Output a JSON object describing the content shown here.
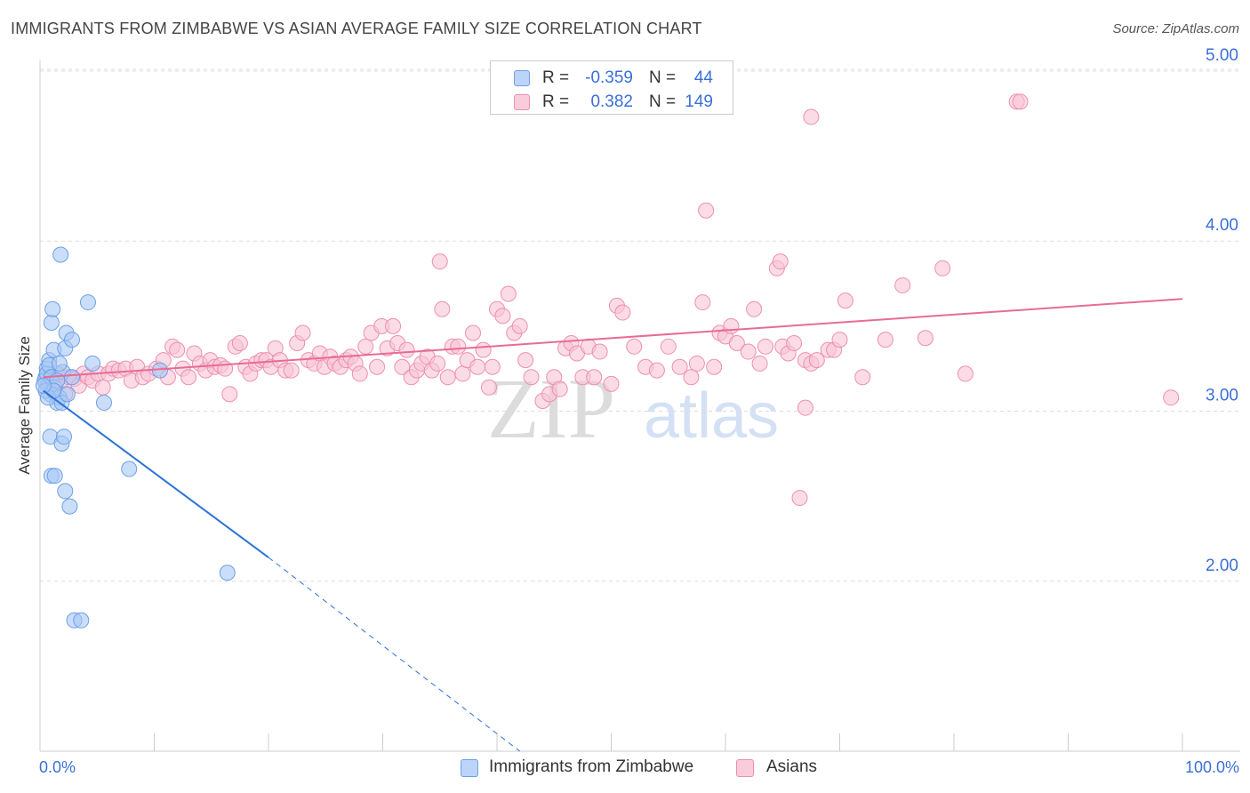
{
  "title": "IMMIGRANTS FROM ZIMBABWE VS ASIAN AVERAGE FAMILY SIZE CORRELATION CHART",
  "source": "Source: ZipAtlas.com",
  "watermark": {
    "zip": "ZIP",
    "atlas": "atlas"
  },
  "legend": {
    "rows": [
      {
        "r_label": "R =",
        "r_value": "-0.359",
        "n_label": "N =",
        "n_value": "44",
        "color": "#7aaaf0"
      },
      {
        "r_label": "R =",
        "r_value": "0.382",
        "n_label": "N =",
        "n_value": "149",
        "color": "#f3a0bd"
      }
    ]
  },
  "bottom_legend": {
    "series1": "Immigrants from Zimbabwe",
    "series2": "Asians"
  },
  "colors": {
    "blue_fill": "#a9c8f5",
    "blue_stroke": "#6c9fe6",
    "blue_line": "#2b72d6",
    "pink_fill": "#f8c5d6",
    "pink_stroke": "#ee8fb0",
    "pink_line": "#e86b96",
    "axis_text": "#3a6fd8",
    "grid": "#dddddd"
  },
  "chart_data": {
    "type": "scatter",
    "title": "IMMIGRANTS FROM ZIMBABWE VS ASIAN AVERAGE FAMILY SIZE CORRELATION CHART",
    "xlabel": "",
    "ylabel": "Average Family Size",
    "x_range": [
      0,
      100
    ],
    "y_range": [
      1.0,
      5.1
    ],
    "x_tick_labels": [
      "0.0%",
      "100.0%"
    ],
    "y_ticks": [
      2.0,
      3.0,
      4.0,
      5.0
    ],
    "y_tick_labels": [
      "2.00",
      "3.00",
      "4.00",
      "5.00"
    ],
    "grid": "horizontal dashed",
    "series": [
      {
        "name": "Immigrants from Zimbabwe",
        "r": -0.359,
        "n": 44,
        "trend": {
          "x": [
            0.3,
            20.0
          ],
          "y": [
            3.12,
            2.14
          ],
          "extended_to": [
            42.0,
            1.0
          ]
        },
        "points": [
          [
            0.5,
            3.2
          ],
          [
            0.6,
            3.25
          ],
          [
            0.7,
            3.15
          ],
          [
            0.8,
            3.3
          ],
          [
            0.9,
            3.1
          ],
          [
            1.0,
            3.52
          ],
          [
            1.1,
            3.6
          ],
          [
            1.2,
            3.36
          ],
          [
            0.4,
            3.18
          ],
          [
            0.5,
            3.12
          ],
          [
            0.6,
            3.22
          ],
          [
            0.8,
            3.27
          ],
          [
            1.0,
            3.2
          ],
          [
            1.3,
            3.14
          ],
          [
            1.5,
            3.05
          ],
          [
            1.7,
            3.08
          ],
          [
            1.9,
            3.05
          ],
          [
            2.0,
            3.23
          ],
          [
            2.2,
            3.37
          ],
          [
            2.3,
            3.46
          ],
          [
            1.7,
            3.28
          ],
          [
            0.9,
            2.85
          ],
          [
            1.9,
            2.81
          ],
          [
            2.1,
            2.85
          ],
          [
            1.0,
            2.62
          ],
          [
            1.3,
            2.62
          ],
          [
            2.2,
            2.53
          ],
          [
            2.6,
            2.44
          ],
          [
            2.4,
            3.1
          ],
          [
            2.8,
            3.42
          ],
          [
            1.8,
            3.92
          ],
          [
            4.2,
            3.64
          ],
          [
            4.6,
            3.28
          ],
          [
            5.6,
            3.05
          ],
          [
            7.8,
            2.66
          ],
          [
            10.5,
            3.24
          ],
          [
            16.4,
            2.05
          ],
          [
            3.0,
            1.77
          ],
          [
            3.6,
            1.77
          ],
          [
            1.5,
            3.18
          ],
          [
            0.7,
            3.08
          ],
          [
            1.2,
            3.12
          ],
          [
            0.3,
            3.15
          ],
          [
            2.8,
            3.2
          ]
        ]
      },
      {
        "name": "Asians",
        "r": 0.382,
        "n": 149,
        "trend": {
          "x": [
            0.3,
            100.0
          ],
          "y": [
            3.2,
            3.66
          ]
        },
        "points": [
          [
            0.5,
            3.18
          ],
          [
            0.8,
            3.2
          ],
          [
            1.2,
            3.15
          ],
          [
            1.5,
            3.22
          ],
          [
            1.8,
            3.17
          ],
          [
            2.2,
            3.1
          ],
          [
            2.5,
            3.2
          ],
          [
            3.0,
            3.19
          ],
          [
            3.4,
            3.15
          ],
          [
            3.8,
            3.22
          ],
          [
            4.2,
            3.2
          ],
          [
            4.6,
            3.18
          ],
          [
            5.1,
            3.22
          ],
          [
            5.5,
            3.14
          ],
          [
            6.0,
            3.22
          ],
          [
            6.4,
            3.25
          ],
          [
            6.9,
            3.24
          ],
          [
            7.5,
            3.25
          ],
          [
            8.0,
            3.18
          ],
          [
            8.5,
            3.26
          ],
          [
            9.0,
            3.2
          ],
          [
            9.5,
            3.22
          ],
          [
            10.2,
            3.25
          ],
          [
            10.8,
            3.3
          ],
          [
            11.2,
            3.2
          ],
          [
            11.6,
            3.38
          ],
          [
            12.0,
            3.36
          ],
          [
            12.5,
            3.25
          ],
          [
            13.0,
            3.2
          ],
          [
            13.5,
            3.34
          ],
          [
            14.0,
            3.28
          ],
          [
            14.5,
            3.24
          ],
          [
            14.9,
            3.3
          ],
          [
            15.3,
            3.26
          ],
          [
            15.8,
            3.27
          ],
          [
            16.2,
            3.25
          ],
          [
            16.6,
            3.1
          ],
          [
            17.1,
            3.38
          ],
          [
            17.5,
            3.4
          ],
          [
            18.0,
            3.26
          ],
          [
            18.4,
            3.22
          ],
          [
            18.9,
            3.28
          ],
          [
            19.4,
            3.3
          ],
          [
            19.8,
            3.3
          ],
          [
            20.2,
            3.26
          ],
          [
            20.6,
            3.37
          ],
          [
            21.0,
            3.3
          ],
          [
            21.5,
            3.24
          ],
          [
            22.0,
            3.24
          ],
          [
            22.5,
            3.4
          ],
          [
            23.0,
            3.46
          ],
          [
            23.5,
            3.3
          ],
          [
            24.0,
            3.28
          ],
          [
            24.5,
            3.34
          ],
          [
            24.9,
            3.26
          ],
          [
            25.4,
            3.32
          ],
          [
            25.8,
            3.28
          ],
          [
            26.3,
            3.26
          ],
          [
            26.8,
            3.3
          ],
          [
            27.2,
            3.32
          ],
          [
            27.6,
            3.28
          ],
          [
            28.0,
            3.22
          ],
          [
            28.5,
            3.38
          ],
          [
            29.0,
            3.46
          ],
          [
            29.5,
            3.26
          ],
          [
            29.9,
            3.5
          ],
          [
            30.4,
            3.37
          ],
          [
            30.9,
            3.5
          ],
          [
            31.3,
            3.4
          ],
          [
            31.7,
            3.26
          ],
          [
            32.1,
            3.36
          ],
          [
            32.5,
            3.2
          ],
          [
            33.0,
            3.24
          ],
          [
            33.4,
            3.28
          ],
          [
            33.9,
            3.32
          ],
          [
            34.3,
            3.24
          ],
          [
            34.8,
            3.28
          ],
          [
            35.2,
            3.6
          ],
          [
            35.7,
            3.2
          ],
          [
            36.1,
            3.38
          ],
          [
            36.6,
            3.38
          ],
          [
            37.0,
            3.22
          ],
          [
            37.4,
            3.3
          ],
          [
            37.9,
            3.46
          ],
          [
            38.3,
            3.26
          ],
          [
            38.8,
            3.36
          ],
          [
            39.3,
            3.14
          ],
          [
            39.6,
            3.26
          ],
          [
            40.0,
            3.6
          ],
          [
            40.5,
            3.56
          ],
          [
            41.0,
            3.69
          ],
          [
            41.5,
            3.46
          ],
          [
            42.0,
            3.5
          ],
          [
            42.5,
            3.3
          ],
          [
            43.0,
            3.2
          ],
          [
            44.0,
            3.06
          ],
          [
            44.6,
            3.1
          ],
          [
            45.0,
            3.2
          ],
          [
            45.5,
            3.13
          ],
          [
            46.0,
            3.37
          ],
          [
            46.5,
            3.4
          ],
          [
            47.0,
            3.34
          ],
          [
            47.5,
            3.2
          ],
          [
            48.0,
            3.38
          ],
          [
            48.5,
            3.2
          ],
          [
            49.0,
            3.35
          ],
          [
            50.0,
            3.16
          ],
          [
            50.5,
            3.62
          ],
          [
            51.0,
            3.58
          ],
          [
            52.0,
            3.38
          ],
          [
            53.0,
            3.26
          ],
          [
            54.0,
            3.24
          ],
          [
            55.0,
            3.38
          ],
          [
            56.0,
            3.26
          ],
          [
            57.0,
            3.2
          ],
          [
            57.5,
            3.28
          ],
          [
            58.0,
            3.64
          ],
          [
            59.0,
            3.26
          ],
          [
            59.5,
            3.46
          ],
          [
            60.0,
            3.44
          ],
          [
            60.5,
            3.5
          ],
          [
            61.0,
            3.4
          ],
          [
            62.0,
            3.35
          ],
          [
            62.5,
            3.6
          ],
          [
            63.0,
            3.28
          ],
          [
            63.5,
            3.38
          ],
          [
            64.5,
            3.84
          ],
          [
            64.8,
            3.88
          ],
          [
            65.0,
            3.38
          ],
          [
            65.5,
            3.34
          ],
          [
            66.0,
            3.4
          ],
          [
            67.0,
            3.3
          ],
          [
            67.5,
            3.28
          ],
          [
            68.0,
            3.3
          ],
          [
            69.0,
            3.36
          ],
          [
            69.5,
            3.36
          ],
          [
            70.0,
            3.42
          ],
          [
            70.5,
            3.65
          ],
          [
            72.0,
            3.2
          ],
          [
            74.0,
            3.42
          ],
          [
            75.5,
            3.74
          ],
          [
            77.5,
            3.43
          ],
          [
            79.0,
            3.84
          ],
          [
            81.0,
            3.22
          ],
          [
            85.5,
            4.82
          ],
          [
            85.8,
            4.82
          ],
          [
            99.0,
            3.08
          ],
          [
            67.0,
            3.02
          ],
          [
            66.5,
            2.49
          ],
          [
            67.5,
            4.73
          ],
          [
            58.3,
            4.18
          ],
          [
            35.0,
            3.88
          ]
        ]
      }
    ]
  }
}
